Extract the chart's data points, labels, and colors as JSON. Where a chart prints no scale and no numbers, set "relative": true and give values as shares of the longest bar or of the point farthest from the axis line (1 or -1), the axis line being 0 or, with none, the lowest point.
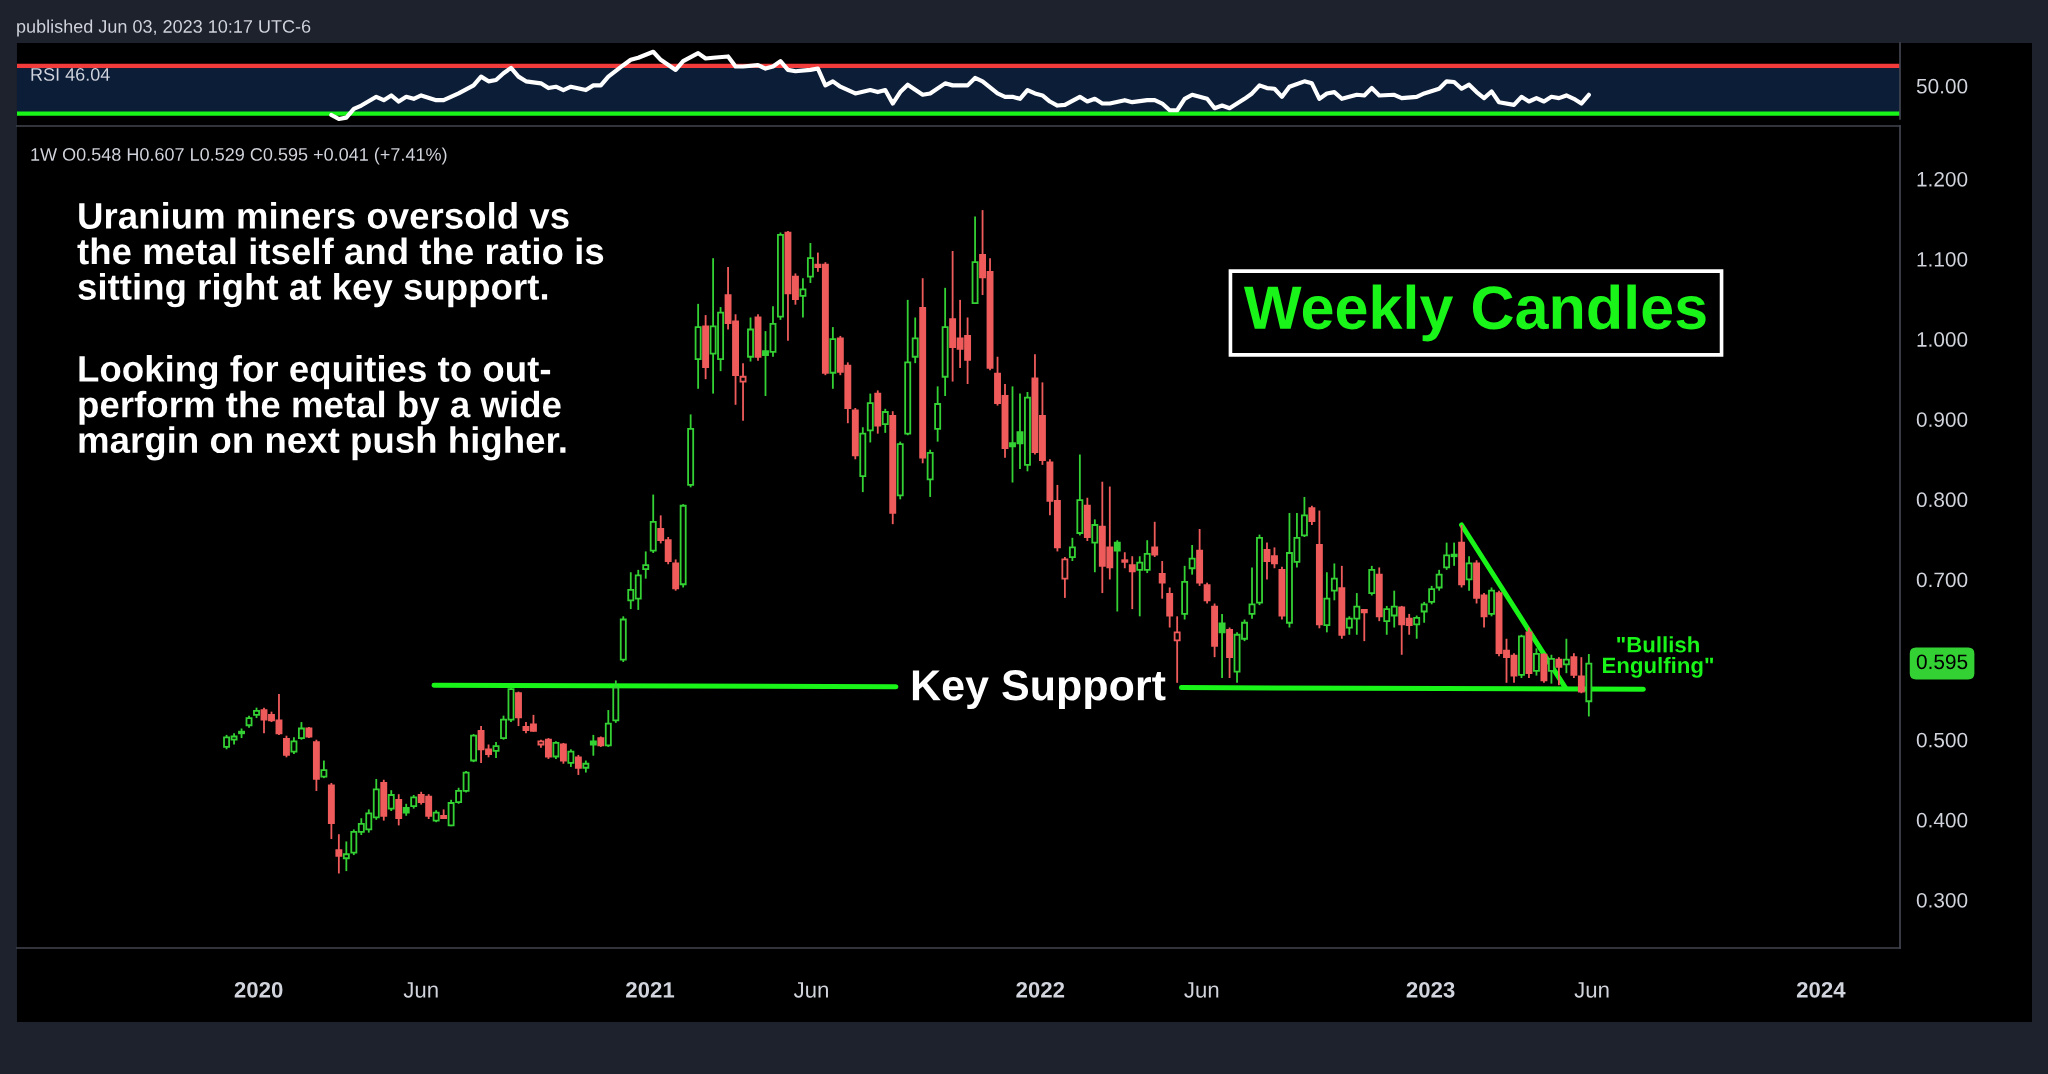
{
  "chart_data": [
    {
      "type": "line",
      "title": "RSI 46.04",
      "relative": true,
      "annotations": [
        "published Jun 03, 2023 10:17 UTC-6",
        "50.00"
      ],
      "series": [
        {
          "color": "#ffffff",
          "x": [
            "2020-03-09",
            "2020-03-16",
            "2020-03-23",
            "2020-03-30",
            "2020-04-06",
            "2020-04-20",
            "2020-04-27",
            "2020-05-04",
            "2020-05-11",
            "2020-05-18",
            "2020-05-25",
            "2020-06-01",
            "2020-06-15",
            "2020-06-22",
            "2020-07-06",
            "2020-07-20",
            "2020-07-27",
            "2020-08-03",
            "2020-08-10",
            "2020-08-17",
            "2020-08-24",
            "2020-08-31",
            "2020-09-07",
            "2020-09-21",
            "2020-09-28",
            "2020-10-05",
            "2020-10-12",
            "2020-10-19",
            "2020-11-02",
            "2020-11-09",
            "2020-11-16",
            "2020-11-23",
            "2020-12-07",
            "2020-12-14",
            "2020-12-21",
            "2021-01-04",
            "2021-01-11",
            "2021-01-25",
            "2021-02-01",
            "2021-02-15",
            "2021-02-22",
            "2021-03-01",
            "2021-03-15",
            "2021-03-22",
            "2021-03-29",
            "2021-04-12",
            "2021-04-19",
            "2021-04-26",
            "2021-05-03",
            "2021-05-10",
            "2021-05-17",
            "2021-05-31",
            "2021-06-07",
            "2021-06-14",
            "2021-06-21",
            "2021-06-28",
            "2021-07-12",
            "2021-07-26",
            "2021-08-02",
            "2021-08-09",
            "2021-08-16",
            "2021-08-23",
            "2021-08-30",
            "2021-09-13",
            "2021-09-20",
            "2021-10-04",
            "2021-10-11",
            "2021-10-25",
            "2021-11-01",
            "2021-11-08",
            "2021-11-22",
            "2021-11-29",
            "2021-12-06",
            "2021-12-13",
            "2021-12-20",
            "2021-12-27",
            "2022-01-03",
            "2022-01-10",
            "2022-01-17",
            "2022-01-24",
            "2022-02-07",
            "2022-02-14",
            "2022-02-21",
            "2022-02-28",
            "2022-03-07",
            "2022-03-21",
            "2022-03-28",
            "2022-04-11",
            "2022-04-18",
            "2022-04-25",
            "2022-05-02",
            "2022-05-09",
            "2022-05-16",
            "2022-05-23",
            "2022-06-06",
            "2022-06-13",
            "2022-06-20",
            "2022-06-27",
            "2022-07-04",
            "2022-07-11",
            "2022-07-18",
            "2022-07-25",
            "2022-08-01",
            "2022-08-08",
            "2022-08-15",
            "2022-08-22",
            "2022-09-05",
            "2022-09-12",
            "2022-09-19",
            "2022-09-26",
            "2022-10-03",
            "2022-10-10",
            "2022-10-24",
            "2022-10-31",
            "2022-11-07",
            "2022-11-14",
            "2022-11-28",
            "2022-12-05",
            "2022-12-19",
            "2022-12-26",
            "2023-01-09",
            "2023-01-16",
            "2023-01-23",
            "2023-01-30",
            "2023-02-06",
            "2023-02-13",
            "2023-02-20",
            "2023-02-27",
            "2023-03-06",
            "2023-03-20",
            "2023-03-27",
            "2023-04-03",
            "2023-04-10",
            "2023-04-17",
            "2023-04-24",
            "2023-05-01",
            "2023-05-08",
            "2023-05-15",
            "2023-05-22",
            "2023-05-29"
          ],
          "values": [
            0.06,
            0.0,
            0.02,
            0.15,
            0.2,
            0.33,
            0.28,
            0.35,
            0.26,
            0.33,
            0.3,
            0.35,
            0.28,
            0.28,
            0.38,
            0.5,
            0.63,
            0.56,
            0.58,
            0.68,
            0.76,
            0.63,
            0.56,
            0.53,
            0.46,
            0.48,
            0.43,
            0.48,
            0.43,
            0.5,
            0.5,
            0.63,
            0.8,
            0.88,
            0.91,
            1.0,
            0.88,
            0.73,
            0.86,
            0.98,
            0.9,
            0.91,
            0.93,
            0.78,
            0.78,
            0.8,
            0.75,
            0.78,
            0.86,
            0.73,
            0.71,
            0.73,
            0.75,
            0.5,
            0.56,
            0.48,
            0.38,
            0.43,
            0.4,
            0.43,
            0.23,
            0.4,
            0.51,
            0.36,
            0.38,
            0.53,
            0.5,
            0.5,
            0.61,
            0.56,
            0.38,
            0.33,
            0.33,
            0.3,
            0.43,
            0.38,
            0.35,
            0.26,
            0.2,
            0.21,
            0.33,
            0.26,
            0.3,
            0.23,
            0.23,
            0.28,
            0.25,
            0.28,
            0.28,
            0.23,
            0.13,
            0.13,
            0.3,
            0.36,
            0.3,
            0.16,
            0.2,
            0.16,
            0.23,
            0.3,
            0.38,
            0.5,
            0.46,
            0.45,
            0.33,
            0.48,
            0.56,
            0.53,
            0.3,
            0.38,
            0.4,
            0.3,
            0.36,
            0.35,
            0.46,
            0.35,
            0.36,
            0.31,
            0.33,
            0.38,
            0.45,
            0.56,
            0.55,
            0.45,
            0.51,
            0.4,
            0.31,
            0.41,
            0.25,
            0.21,
            0.33,
            0.26,
            0.31,
            0.26,
            0.33,
            0.31,
            0.35,
            0.3,
            0.23,
            0.36
          ]
        }
      ],
      "xlim": [
        "2019-05-20",
        "2024-03-15"
      ],
      "tick_labels": false,
      "ref_lines": [
        {
          "axis": "y",
          "value": 0.79,
          "color": "#f23b3b"
        },
        {
          "axis": "y",
          "value": 0.08,
          "color": "#19f519"
        }
      ],
      "bands": [
        {
          "axis": "y",
          "from": 0.08,
          "to": 0.79,
          "color": "#0c1d38"
        }
      ]
    },
    {
      "type": "candlestick",
      "title": "Weekly Candles",
      "subtitle": "1W O0.548 H0.607 L0.529 C0.595 +0.041 (+7.41%)",
      "series": [
        {
          "type": "candlestick",
          "x": [
            "2019-12-02",
            "2019-12-09",
            "2019-12-16",
            "2019-12-23",
            "2019-12-30",
            "2020-01-06",
            "2020-01-13",
            "2020-01-20",
            "2020-01-27",
            "2020-02-03",
            "2020-02-10",
            "2020-02-17",
            "2020-02-24",
            "2020-03-02",
            "2020-03-09",
            "2020-03-16",
            "2020-03-23",
            "2020-03-30",
            "2020-04-06",
            "2020-04-13",
            "2020-04-20",
            "2020-04-27",
            "2020-05-04",
            "2020-05-11",
            "2020-05-18",
            "2020-05-25",
            "2020-06-01",
            "2020-06-08",
            "2020-06-15",
            "2020-06-22",
            "2020-06-29",
            "2020-07-06",
            "2020-07-13",
            "2020-07-20",
            "2020-07-27",
            "2020-08-03",
            "2020-08-10",
            "2020-08-17",
            "2020-08-24",
            "2020-08-31",
            "2020-09-07",
            "2020-09-14",
            "2020-09-21",
            "2020-09-28",
            "2020-10-05",
            "2020-10-12",
            "2020-10-19",
            "2020-10-26",
            "2020-11-02",
            "2020-11-09",
            "2020-11-16",
            "2020-11-23",
            "2020-11-30",
            "2020-12-07",
            "2020-12-14",
            "2020-12-21",
            "2020-12-28",
            "2021-01-04",
            "2021-01-11",
            "2021-01-18",
            "2021-01-25",
            "2021-02-01",
            "2021-02-08",
            "2021-02-15",
            "2021-02-22",
            "2021-03-01",
            "2021-03-08",
            "2021-03-15",
            "2021-03-22",
            "2021-03-29",
            "2021-04-05",
            "2021-04-12",
            "2021-04-19",
            "2021-04-26",
            "2021-05-03",
            "2021-05-10",
            "2021-05-17",
            "2021-05-24",
            "2021-05-31",
            "2021-06-07",
            "2021-06-14",
            "2021-06-21",
            "2021-06-28",
            "2021-07-05",
            "2021-07-12",
            "2021-07-19",
            "2021-07-26",
            "2021-08-02",
            "2021-08-09",
            "2021-08-16",
            "2021-08-23",
            "2021-08-30",
            "2021-09-06",
            "2021-09-13",
            "2021-09-20",
            "2021-09-27",
            "2021-10-04",
            "2021-10-11",
            "2021-10-18",
            "2021-10-25",
            "2021-11-01",
            "2021-11-08",
            "2021-11-15",
            "2021-11-22",
            "2021-11-29",
            "2021-12-06",
            "2021-12-13",
            "2021-12-20",
            "2021-12-27",
            "2022-01-03",
            "2022-01-10",
            "2022-01-17",
            "2022-01-24",
            "2022-01-31",
            "2022-02-07",
            "2022-02-14",
            "2022-02-21",
            "2022-02-28",
            "2022-03-07",
            "2022-03-14",
            "2022-03-21",
            "2022-03-28",
            "2022-04-04",
            "2022-04-11",
            "2022-04-18",
            "2022-04-25",
            "2022-05-02",
            "2022-05-09",
            "2022-05-16",
            "2022-05-23",
            "2022-05-30",
            "2022-06-06",
            "2022-06-13",
            "2022-06-20",
            "2022-06-27",
            "2022-07-04",
            "2022-07-11",
            "2022-07-18",
            "2022-07-25",
            "2022-08-01",
            "2022-08-08",
            "2022-08-15",
            "2022-08-22",
            "2022-08-29",
            "2022-09-05",
            "2022-09-12",
            "2022-09-19",
            "2022-09-26",
            "2022-10-03",
            "2022-10-10",
            "2022-10-17",
            "2022-10-24",
            "2022-10-31",
            "2022-11-07",
            "2022-11-14",
            "2022-11-21",
            "2022-11-28",
            "2022-12-05",
            "2022-12-12",
            "2022-12-19",
            "2022-12-26",
            "2023-01-02",
            "2023-01-09",
            "2023-01-16",
            "2023-01-23",
            "2023-01-30",
            "2023-02-06",
            "2023-02-13",
            "2023-02-20",
            "2023-02-27",
            "2023-03-06",
            "2023-03-13",
            "2023-03-20",
            "2023-03-27",
            "2023-04-03",
            "2023-04-10",
            "2023-04-17",
            "2023-04-24",
            "2023-05-01",
            "2023-05-08",
            "2023-05-15",
            "2023-05-22",
            "2023-05-29"
          ],
          "ohlc": [
            [
              0.491,
              0.506,
              0.488,
              0.503
            ],
            [
              0.5,
              0.508,
              0.494,
              0.504
            ],
            [
              0.508,
              0.514,
              0.502,
              0.51
            ],
            [
              0.518,
              0.53,
              0.515,
              0.527
            ],
            [
              0.531,
              0.54,
              0.527,
              0.536
            ],
            [
              0.537,
              0.54,
              0.508,
              0.525
            ],
            [
              0.531,
              0.535,
              0.522,
              0.524
            ],
            [
              0.524,
              0.557,
              0.506,
              0.508
            ],
            [
              0.501,
              0.505,
              0.478,
              0.481
            ],
            [
              0.485,
              0.503,
              0.482,
              0.498
            ],
            [
              0.502,
              0.522,
              0.5,
              0.514
            ],
            [
              0.514,
              0.516,
              0.502,
              0.504
            ],
            [
              0.497,
              0.5,
              0.436,
              0.451
            ],
            [
              0.454,
              0.474,
              0.452,
              0.462
            ],
            [
              0.443,
              0.446,
              0.376,
              0.396
            ],
            [
              0.362,
              0.382,
              0.333,
              0.355
            ],
            [
              0.352,
              0.373,
              0.336,
              0.357
            ],
            [
              0.359,
              0.388,
              0.356,
              0.385
            ],
            [
              0.385,
              0.402,
              0.381,
              0.395
            ],
            [
              0.388,
              0.413,
              0.384,
              0.408
            ],
            [
              0.403,
              0.451,
              0.4,
              0.438
            ],
            [
              0.446,
              0.45,
              0.399,
              0.405
            ],
            [
              0.414,
              0.437,
              0.411,
              0.431
            ],
            [
              0.425,
              0.432,
              0.393,
              0.402
            ],
            [
              0.415,
              0.42,
              0.405,
              0.409
            ],
            [
              0.417,
              0.431,
              0.414,
              0.428
            ],
            [
              0.431,
              0.435,
              0.419,
              0.422
            ],
            [
              0.429,
              0.432,
              0.401,
              0.405
            ],
            [
              0.399,
              0.412,
              0.397,
              0.409
            ],
            [
              0.405,
              0.413,
              0.401,
              0.402
            ],
            [
              0.393,
              0.425,
              0.392,
              0.421
            ],
            [
              0.422,
              0.44,
              0.42,
              0.436
            ],
            [
              0.436,
              0.461,
              0.434,
              0.459
            ],
            [
              0.474,
              0.507,
              0.472,
              0.505
            ],
            [
              0.511,
              0.517,
              0.471,
              0.488
            ],
            [
              0.488,
              0.494,
              0.478,
              0.482
            ],
            [
              0.486,
              0.497,
              0.477,
              0.492
            ],
            [
              0.502,
              0.53,
              0.5,
              0.525
            ],
            [
              0.525,
              0.565,
              0.522,
              0.563
            ],
            [
              0.558,
              0.56,
              0.517,
              0.528
            ],
            [
              0.516,
              0.522,
              0.508,
              0.512
            ],
            [
              0.519,
              0.531,
              0.51,
              0.511
            ],
            [
              0.494,
              0.5,
              0.49,
              0.498
            ],
            [
              0.5,
              0.502,
              0.476,
              0.479
            ],
            [
              0.479,
              0.498,
              0.476,
              0.496
            ],
            [
              0.494,
              0.496,
              0.47,
              0.474
            ],
            [
              0.471,
              0.488,
              0.466,
              0.485
            ],
            [
              0.478,
              0.481,
              0.456,
              0.465
            ],
            [
              0.465,
              0.474,
              0.459,
              0.47
            ],
            [
              0.498,
              0.506,
              0.48,
              0.494
            ],
            [
              0.502,
              0.504,
              0.491,
              0.493
            ],
            [
              0.493,
              0.537,
              0.491,
              0.52
            ],
            [
              0.524,
              0.574,
              0.521,
              0.565
            ],
            [
              0.6,
              0.654,
              0.597,
              0.65
            ],
            [
              0.674,
              0.709,
              0.663,
              0.687
            ],
            [
              0.676,
              0.712,
              0.662,
              0.705
            ],
            [
              0.713,
              0.735,
              0.701,
              0.718
            ],
            [
              0.736,
              0.806,
              0.733,
              0.772
            ],
            [
              0.763,
              0.78,
              0.745,
              0.749
            ],
            [
              0.749,
              0.753,
              0.719,
              0.723
            ],
            [
              0.72,
              0.725,
              0.686,
              0.689
            ],
            [
              0.694,
              0.794,
              0.69,
              0.792
            ],
            [
              0.818,
              0.906,
              0.815,
              0.888
            ],
            [
              0.975,
              1.044,
              0.938,
              1.015
            ],
            [
              1.016,
              1.03,
              0.95,
              0.965
            ],
            [
              0.982,
              1.101,
              0.932,
              1.016
            ],
            [
              0.975,
              1.04,
              0.96,
              1.033
            ],
            [
              1.055,
              1.09,
              1.012,
              1.02
            ],
            [
              1.022,
              1.031,
              0.918,
              0.955
            ],
            [
              0.947,
              0.97,
              0.898,
              0.953
            ],
            [
              0.978,
              1.027,
              0.972,
              1.012
            ],
            [
              1.027,
              1.031,
              0.973,
              0.978
            ],
            [
              0.985,
              1.01,
              0.929,
              0.98
            ],
            [
              0.984,
              1.041,
              0.978,
              1.019
            ],
            [
              1.028,
              1.133,
              1.024,
              1.13
            ],
            [
              1.133,
              1.135,
              0.998,
              1.057
            ],
            [
              1.078,
              1.082,
              1.043,
              1.05
            ],
            [
              1.054,
              1.076,
              1.027,
              1.062
            ],
            [
              1.078,
              1.12,
              1.07,
              1.101
            ],
            [
              1.093,
              1.108,
              1.084,
              1.09
            ],
            [
              1.093,
              1.096,
              0.955,
              0.958
            ],
            [
              0.958,
              1.015,
              0.938,
              1.0
            ],
            [
              1.001,
              1.004,
              0.955,
              0.959
            ],
            [
              0.967,
              0.971,
              0.895,
              0.914
            ],
            [
              0.911,
              0.914,
              0.85,
              0.855
            ],
            [
              0.829,
              0.89,
              0.809,
              0.882
            ],
            [
              0.886,
              0.932,
              0.871,
              0.92
            ],
            [
              0.932,
              0.936,
              0.882,
              0.892
            ],
            [
              0.894,
              0.913,
              0.883,
              0.909
            ],
            [
              0.904,
              0.91,
              0.769,
              0.783
            ],
            [
              0.805,
              0.872,
              0.8,
              0.869
            ],
            [
              0.882,
              1.049,
              0.88,
              0.971
            ],
            [
              0.978,
              1.027,
              0.97,
              1.001
            ],
            [
              1.039,
              1.076,
              0.845,
              0.852
            ],
            [
              0.825,
              0.862,
              0.803,
              0.858
            ],
            [
              0.888,
              0.941,
              0.872,
              0.919
            ],
            [
              0.953,
              1.064,
              0.929,
              1.015
            ],
            [
              1.025,
              1.11,
              0.947,
              0.99
            ],
            [
              1.001,
              1.049,
              0.964,
              0.988
            ],
            [
              1.004,
              1.027,
              0.944,
              0.974
            ],
            [
              1.045,
              1.153,
              1.044,
              1.096
            ],
            [
              1.105,
              1.161,
              1.055,
              1.077
            ],
            [
              1.084,
              1.101,
              0.961,
              0.964
            ],
            [
              0.957,
              0.978,
              0.917,
              0.92
            ],
            [
              0.929,
              0.944,
              0.852,
              0.864
            ],
            [
              0.87,
              0.941,
              0.821,
              0.866
            ],
            [
              0.884,
              0.932,
              0.838,
              0.87
            ],
            [
              0.843,
              0.934,
              0.835,
              0.927
            ],
            [
              0.951,
              0.981,
              0.856,
              0.859
            ],
            [
              0.904,
              0.946,
              0.843,
              0.849
            ],
            [
              0.846,
              0.85,
              0.78,
              0.798
            ],
            [
              0.798,
              0.818,
              0.735,
              0.74
            ],
            [
              0.701,
              0.728,
              0.677,
              0.725
            ],
            [
              0.728,
              0.752,
              0.723,
              0.74
            ],
            [
              0.758,
              0.856,
              0.755,
              0.799
            ],
            [
              0.792,
              0.802,
              0.748,
              0.753
            ],
            [
              0.746,
              0.775,
              0.709,
              0.768
            ],
            [
              0.766,
              0.822,
              0.683,
              0.717
            ],
            [
              0.74,
              0.816,
              0.7,
              0.715
            ],
            [
              0.746,
              0.749,
              0.66,
              0.736
            ],
            [
              0.724,
              0.734,
              0.714,
              0.722
            ],
            [
              0.718,
              0.729,
              0.663,
              0.71
            ],
            [
              0.712,
              0.729,
              0.654,
              0.721
            ],
            [
              0.712,
              0.749,
              0.708,
              0.732
            ],
            [
              0.74,
              0.772,
              0.728,
              0.731
            ],
            [
              0.707,
              0.723,
              0.676,
              0.696
            ],
            [
              0.682,
              0.69,
              0.64,
              0.655
            ],
            [
              0.624,
              0.654,
              0.571,
              0.634
            ],
            [
              0.657,
              0.717,
              0.65,
              0.697
            ],
            [
              0.714,
              0.743,
              0.706,
              0.726
            ],
            [
              0.736,
              0.763,
              0.692,
              0.696
            ],
            [
              0.693,
              0.696,
              0.67,
              0.674
            ],
            [
              0.666,
              0.67,
              0.603,
              0.617
            ],
            [
              0.645,
              0.657,
              0.577,
              0.634
            ],
            [
              0.637,
              0.64,
              0.577,
              0.603
            ],
            [
              0.585,
              0.634,
              0.571,
              0.631
            ],
            [
              0.626,
              0.65,
              0.623,
              0.646
            ],
            [
              0.657,
              0.715,
              0.651,
              0.669
            ],
            [
              0.671,
              0.756,
              0.668,
              0.752
            ],
            [
              0.737,
              0.746,
              0.7,
              0.723
            ],
            [
              0.729,
              0.74,
              0.714,
              0.72
            ],
            [
              0.712,
              0.716,
              0.65,
              0.655
            ],
            [
              0.646,
              0.783,
              0.64,
              0.733
            ],
            [
              0.722,
              0.783,
              0.715,
              0.752
            ],
            [
              0.755,
              0.803,
              0.753,
              0.78
            ],
            [
              0.789,
              0.792,
              0.768,
              0.773
            ],
            [
              0.743,
              0.786,
              0.639,
              0.644
            ],
            [
              0.643,
              0.709,
              0.634,
              0.676
            ],
            [
              0.686,
              0.72,
              0.674,
              0.701
            ],
            [
              0.689,
              0.717,
              0.626,
              0.631
            ],
            [
              0.64,
              0.654,
              0.631,
              0.651
            ],
            [
              0.651,
              0.683,
              0.631,
              0.666
            ],
            [
              0.662,
              0.663,
              0.623,
              0.659
            ],
            [
              0.683,
              0.717,
              0.68,
              0.712
            ],
            [
              0.706,
              0.715,
              0.648,
              0.654
            ],
            [
              0.648,
              0.667,
              0.631,
              0.663
            ],
            [
              0.655,
              0.686,
              0.64,
              0.666
            ],
            [
              0.665,
              0.667,
              0.606,
              0.644
            ],
            [
              0.651,
              0.657,
              0.631,
              0.643
            ],
            [
              0.644,
              0.655,
              0.626,
              0.652
            ],
            [
              0.66,
              0.672,
              0.646,
              0.669
            ],
            [
              0.672,
              0.692,
              0.669,
              0.688
            ],
            [
              0.69,
              0.712,
              0.686,
              0.706
            ],
            [
              0.715,
              0.746,
              0.712,
              0.73
            ],
            [
              0.729,
              0.746,
              0.717,
              0.731
            ],
            [
              0.746,
              0.768,
              0.69,
              0.694
            ],
            [
              0.7,
              0.729,
              0.686,
              0.72
            ],
            [
              0.72,
              0.724,
              0.67,
              0.677
            ],
            [
              0.68,
              0.683,
              0.64,
              0.654
            ],
            [
              0.657,
              0.69,
              0.654,
              0.686
            ],
            [
              0.683,
              0.686,
              0.604,
              0.608
            ],
            [
              0.611,
              0.626,
              0.571,
              0.603
            ],
            [
              0.605,
              0.608,
              0.571,
              0.58
            ],
            [
              0.581,
              0.631,
              0.577,
              0.629
            ],
            [
              0.634,
              0.64,
              0.577,
              0.583
            ],
            [
              0.586,
              0.614,
              0.58,
              0.607
            ],
            [
              0.606,
              0.608,
              0.571,
              0.574
            ],
            [
              0.586,
              0.606,
              0.57,
              0.601
            ],
            [
              0.6,
              0.603,
              0.568,
              0.591
            ],
            [
              0.594,
              0.626,
              0.583,
              0.6
            ],
            [
              0.603,
              0.608,
              0.577,
              0.581
            ],
            [
              0.579,
              0.603,
              0.558,
              0.56
            ],
            [
              0.548,
              0.607,
              0.529,
              0.595
            ]
          ],
          "colors": [
            "#34d134",
            "#34d134",
            "#34d134",
            "#34d134",
            "#34d134",
            "#ef5b5b",
            "#ef5b5b",
            "#ef5b5b",
            "#ef5b5b",
            "#34d134",
            "#34d134",
            "#ef5b5b",
            "#ef5b5b",
            "#34d134",
            "#ef5b5b",
            "#ef5b5b",
            "#34d134",
            "#34d134",
            "#34d134",
            "#34d134",
            "#34d134",
            "#ef5b5b",
            "#34d134",
            "#ef5b5b",
            "#34d134",
            "#34d134",
            "#ef5b5b",
            "#ef5b5b",
            "#34d134",
            "#ef5b5b",
            "#34d134",
            "#34d134",
            "#34d134",
            "#34d134",
            "#ef5b5b",
            "#ef5b5b",
            "#34d134",
            "#34d134",
            "#34d134",
            "#ef5b5b",
            "#ef5b5b",
            "#ef5b5b",
            "#ef5b5b",
            "#ef5b5b",
            "#34d134",
            "#ef5b5b",
            "#34d134",
            "#ef5b5b",
            "#34d134",
            "#34d134",
            "#ef5b5b",
            "#34d134",
            "#34d134",
            "#34d134",
            "#34d134",
            "#34d134",
            "#34d134",
            "#34d134",
            "#ef5b5b",
            "#ef5b5b",
            "#ef5b5b",
            "#34d134",
            "#34d134",
            "#34d134",
            "#ef5b5b",
            "#34d134",
            "#34d134",
            "#ef5b5b",
            "#ef5b5b",
            "#ef5b5b",
            "#34d134",
            "#ef5b5b",
            "#34d134",
            "#34d134",
            "#34d134",
            "#ef5b5b",
            "#ef5b5b",
            "#34d134",
            "#34d134",
            "#ef5b5b",
            "#ef5b5b",
            "#34d134",
            "#ef5b5b",
            "#ef5b5b",
            "#ef5b5b",
            "#34d134",
            "#34d134",
            "#ef5b5b",
            "#34d134",
            "#ef5b5b",
            "#34d134",
            "#34d134",
            "#34d134",
            "#ef5b5b",
            "#34d134",
            "#34d134",
            "#34d134",
            "#ef5b5b",
            "#ef5b5b",
            "#ef5b5b",
            "#34d134",
            "#ef5b5b",
            "#ef5b5b",
            "#ef5b5b",
            "#ef5b5b",
            "#34d134",
            "#34d134",
            "#34d134",
            "#ef5b5b",
            "#ef5b5b",
            "#ef5b5b",
            "#ef5b5b",
            "#ef5b5b",
            "#34d134",
            "#34d134",
            "#ef5b5b",
            "#34d134",
            "#ef5b5b",
            "#ef5b5b",
            "#34d134",
            "#ef5b5b",
            "#ef5b5b",
            "#34d134",
            "#34d134",
            "#ef5b5b",
            "#ef5b5b",
            "#ef5b5b",
            "#ef5b5b",
            "#34d134",
            "#34d134",
            "#ef5b5b",
            "#ef5b5b",
            "#ef5b5b",
            "#34d134",
            "#ef5b5b",
            "#34d134",
            "#34d134",
            "#34d134",
            "#34d134",
            "#ef5b5b",
            "#ef5b5b",
            "#ef5b5b",
            "#34d134",
            "#34d134",
            "#34d134",
            "#ef5b5b",
            "#ef5b5b",
            "#34d134",
            "#34d134",
            "#ef5b5b",
            "#34d134",
            "#34d134",
            "#ef5b5b",
            "#34d134",
            "#ef5b5b",
            "#34d134",
            "#34d134",
            "#ef5b5b",
            "#ef5b5b",
            "#34d134",
            "#34d134",
            "#34d134",
            "#34d134",
            "#34d134",
            "#34d134",
            "#ef5b5b",
            "#34d134",
            "#ef5b5b",
            "#ef5b5b",
            "#34d134",
            "#ef5b5b",
            "#ef5b5b",
            "#ef5b5b",
            "#34d134",
            "#ef5b5b",
            "#34d134",
            "#ef5b5b",
            "#34d134",
            "#ef5b5b",
            "#34d134",
            "#ef5b5b",
            "#ef5b5b",
            "#34d134"
          ]
        },
        {
          "type": "line",
          "color": "#19f519",
          "x": [
            "2020-06-13",
            "2021-08-19"
          ],
          "values": [
            0.568,
            0.566
          ]
        },
        {
          "type": "line",
          "color": "#19f519",
          "x": [
            "2022-05-13",
            "2023-07-19"
          ],
          "values": [
            0.565,
            0.563
          ]
        },
        {
          "type": "line",
          "color": "#19f519",
          "x": [
            "2023-01-30",
            "2023-05-07"
          ],
          "values": [
            0.768,
            0.565
          ]
        }
      ],
      "xlim": [
        "2019-05-20",
        "2024-03-15"
      ],
      "xticks": [
        {
          "value": "2020-01-01",
          "label": "2020"
        },
        {
          "value": "2020-06-01",
          "label": "Jun"
        },
        {
          "value": "2021-01-01",
          "label": "2021"
        },
        {
          "value": "2021-06-01",
          "label": "Jun"
        },
        {
          "value": "2022-01-01",
          "label": "2022"
        },
        {
          "value": "2022-06-01",
          "label": "Jun"
        },
        {
          "value": "2023-01-01",
          "label": "2023"
        },
        {
          "value": "2023-06-01",
          "label": "Jun"
        },
        {
          "value": "2024-01-01",
          "label": "2024"
        }
      ],
      "ylim": [
        0.24,
        1.266
      ],
      "yticks": [
        {
          "value": 0.3,
          "label": "0.300"
        },
        {
          "value": 0.4,
          "label": "0.400"
        },
        {
          "value": 0.5,
          "label": "0.500"
        },
        {
          "value": 0.7,
          "label": "0.700"
        },
        {
          "value": 0.8,
          "label": "0.800"
        },
        {
          "value": 0.9,
          "label": "0.900"
        },
        {
          "value": 1.0,
          "label": "1.000"
        },
        {
          "value": 1.1,
          "label": "1.100"
        },
        {
          "value": 1.2,
          "label": "1.200"
        }
      ],
      "annotations": [
        "Uranium miners oversold vs\nthe metal itself and the ratio is\nsitting right at key support.",
        "Looking for equities to out-\nperform the metal by a wide\nmargin on next push higher.",
        "Key Support",
        "\"Bullish\nEngulfing\"",
        "0.595"
      ]
    }
  ]
}
